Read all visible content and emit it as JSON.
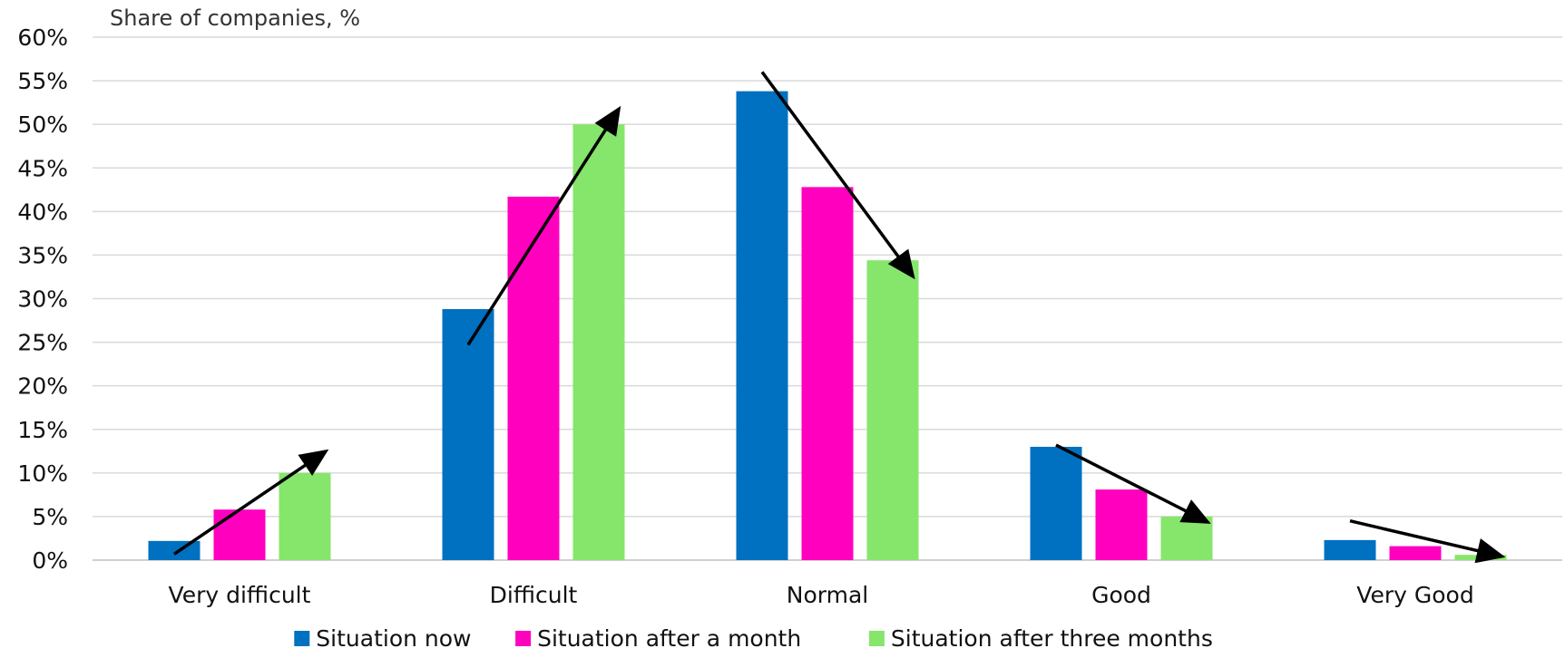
{
  "chart_data": {
    "type": "bar",
    "ylabel": "Share of companies, %",
    "xlabel": "",
    "categories": [
      "Very difficult",
      "Difficult",
      "Normal",
      "Good",
      "Very Good"
    ],
    "series": [
      {
        "name": "Situation now",
        "color": "#0070C0",
        "values": [
          2.2,
          28.8,
          53.8,
          13.0,
          2.3
        ]
      },
      {
        "name": "Situation after a month",
        "color": "#FF00BF",
        "values": [
          5.8,
          41.7,
          42.8,
          8.1,
          1.6
        ]
      },
      {
        "name": "Situation after three months",
        "color": "#86E66B",
        "values": [
          10.0,
          50.0,
          34.4,
          5.0,
          0.6
        ]
      }
    ],
    "ylim": [
      0,
      60
    ],
    "yticks": [
      "0%",
      "5%",
      "10%",
      "15%",
      "20%",
      "25%",
      "30%",
      "35%",
      "40%",
      "45%",
      "50%",
      "55%",
      "60%"
    ],
    "grid": true,
    "legend_position": "bottom",
    "annotations": [
      {
        "type": "arrow",
        "category": "Very difficult",
        "from": 0.7,
        "to": 12.3
      },
      {
        "type": "arrow",
        "category": "Difficult",
        "from": 24.7,
        "to": 51.5
      },
      {
        "type": "arrow",
        "category": "Normal",
        "from": 56.0,
        "to": 32.8
      },
      {
        "type": "arrow",
        "category": "Good",
        "from": 13.2,
        "to": 4.5
      },
      {
        "type": "arrow",
        "category": "Very Good",
        "from": 4.5,
        "to": 0.5
      }
    ]
  }
}
